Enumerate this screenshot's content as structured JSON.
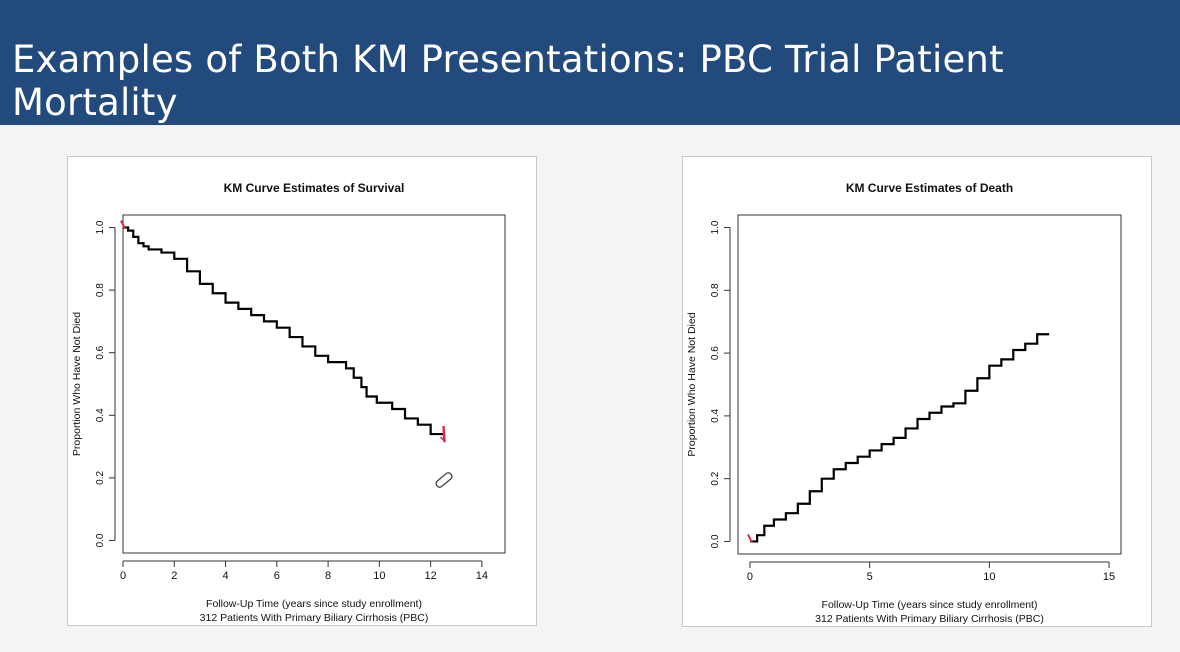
{
  "slide": {
    "title": "Examples of Both KM Presentations: PBC Trial Patient Mortality",
    "header_color": "#234a7c"
  },
  "chart_data": [
    {
      "type": "line",
      "step": true,
      "title": "KM Curve Estimates of  Survival",
      "xlabel": "Follow-Up Time (years since study enrollment)",
      "xlabel2": "312 Patients With Primary Biliary Cirrhosis (PBC)",
      "ylabel": "Proportion Who Have Not Died",
      "xlim": [
        0,
        14.9
      ],
      "ylim": [
        -0.04,
        1.04
      ],
      "xticks": [
        0,
        2,
        4,
        6,
        8,
        10,
        12,
        14
      ],
      "yticks": [
        0.0,
        0.2,
        0.4,
        0.6,
        0.8,
        1.0
      ],
      "ytick_labels": [
        "0.0",
        "0.2",
        "0.4",
        "0.6",
        "0.8",
        "1.0"
      ],
      "grid": false,
      "line_color": "#000000",
      "marker_color": "#d62f4b",
      "annotation": "pencil-cursor-icon",
      "series": [
        {
          "x": [
            0,
            0.2,
            0.4,
            0.6,
            0.8,
            1.0,
            1.5,
            2.0,
            2.5,
            3.0,
            3.5,
            4.0,
            4.5,
            5.0,
            5.5,
            6.0,
            6.5,
            7.0,
            7.5,
            8.0,
            8.5,
            8.7,
            9.0,
            9.3,
            9.5,
            9.9,
            10.5,
            11.0,
            11.5,
            12.0,
            12.5
          ],
          "y": [
            1.0,
            0.99,
            0.97,
            0.95,
            0.94,
            0.93,
            0.92,
            0.9,
            0.86,
            0.82,
            0.79,
            0.76,
            0.74,
            0.72,
            0.7,
            0.68,
            0.65,
            0.62,
            0.59,
            0.57,
            0.57,
            0.55,
            0.52,
            0.49,
            0.46,
            0.44,
            0.42,
            0.39,
            0.37,
            0.34,
            0.34
          ]
        }
      ]
    },
    {
      "type": "line",
      "step": true,
      "title": "KM Curve Estimates of Death",
      "xlabel": "Follow-Up Time (years since study enrollment)",
      "xlabel2": "312 Patients With Primary Biliary Cirrhosis (PBC)",
      "ylabel": "Proportion Who Have Not Died",
      "xlim": [
        -0.5,
        15.5
      ],
      "ylim": [
        -0.04,
        1.04
      ],
      "xticks": [
        0,
        5,
        10,
        15
      ],
      "yticks": [
        0.0,
        0.2,
        0.4,
        0.6,
        0.8,
        1.0
      ],
      "ytick_labels": [
        "0.0",
        "0.2",
        "0.4",
        "0.6",
        "0.8",
        "1.0"
      ],
      "grid": false,
      "line_color": "#000000",
      "marker_color": "#d62f4b",
      "series": [
        {
          "x": [
            0,
            0.3,
            0.6,
            1.0,
            1.5,
            2.0,
            2.5,
            3.0,
            3.5,
            4.0,
            4.5,
            5.0,
            5.5,
            6.0,
            6.5,
            7.0,
            7.5,
            8.0,
            8.5,
            9.0,
            9.5,
            10.0,
            10.5,
            11.0,
            11.5,
            12.0,
            12.5
          ],
          "y": [
            0.0,
            0.02,
            0.05,
            0.07,
            0.09,
            0.12,
            0.16,
            0.2,
            0.23,
            0.25,
            0.27,
            0.29,
            0.31,
            0.33,
            0.36,
            0.39,
            0.41,
            0.43,
            0.44,
            0.48,
            0.52,
            0.56,
            0.58,
            0.61,
            0.63,
            0.66,
            0.66
          ]
        }
      ]
    }
  ]
}
